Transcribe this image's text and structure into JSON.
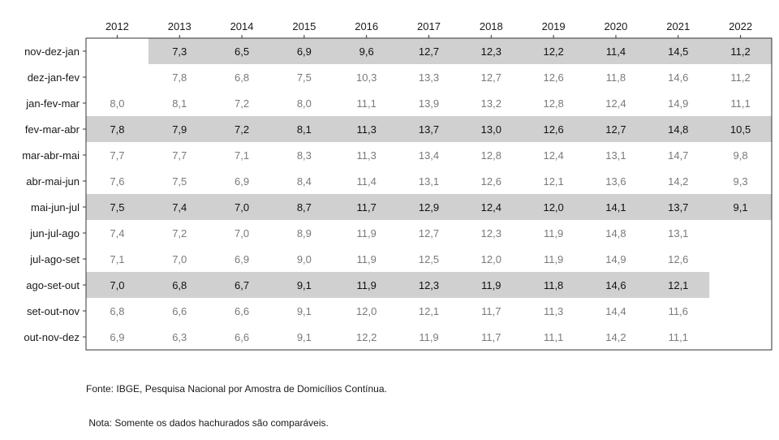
{
  "chart_data": {
    "type": "table",
    "title": "",
    "columns": [
      "2012",
      "2013",
      "2014",
      "2015",
      "2016",
      "2017",
      "2018",
      "2019",
      "2020",
      "2021",
      "2022"
    ],
    "rows": [
      {
        "label": "nov-dez-jan",
        "values": [
          null,
          "7,3",
          "6,5",
          "6,9",
          "9,6",
          "12,7",
          "12,3",
          "12,2",
          "11,4",
          "14,5",
          "11,2"
        ],
        "highlighted": [
          false,
          true,
          true,
          true,
          true,
          true,
          true,
          true,
          true,
          true,
          true
        ]
      },
      {
        "label": "dez-jan-fev",
        "values": [
          null,
          "7,8",
          "6,8",
          "7,5",
          "10,3",
          "13,3",
          "12,7",
          "12,6",
          "11,8",
          "14,6",
          "11,2"
        ],
        "highlighted": [
          false,
          false,
          false,
          false,
          false,
          false,
          false,
          false,
          false,
          false,
          false
        ]
      },
      {
        "label": "jan-fev-mar",
        "values": [
          "8,0",
          "8,1",
          "7,2",
          "8,0",
          "11,1",
          "13,9",
          "13,2",
          "12,8",
          "12,4",
          "14,9",
          "11,1"
        ],
        "highlighted": [
          false,
          false,
          false,
          false,
          false,
          false,
          false,
          false,
          false,
          false,
          false
        ]
      },
      {
        "label": "fev-mar-abr",
        "values": [
          "7,8",
          "7,9",
          "7,2",
          "8,1",
          "11,3",
          "13,7",
          "13,0",
          "12,6",
          "12,7",
          "14,8",
          "10,5"
        ],
        "highlighted": [
          true,
          true,
          true,
          true,
          true,
          true,
          true,
          true,
          true,
          true,
          true
        ]
      },
      {
        "label": "mar-abr-mai",
        "values": [
          "7,7",
          "7,7",
          "7,1",
          "8,3",
          "11,3",
          "13,4",
          "12,8",
          "12,4",
          "13,1",
          "14,7",
          "9,8"
        ],
        "highlighted": [
          false,
          false,
          false,
          false,
          false,
          false,
          false,
          false,
          false,
          false,
          false
        ]
      },
      {
        "label": "abr-mai-jun",
        "values": [
          "7,6",
          "7,5",
          "6,9",
          "8,4",
          "11,4",
          "13,1",
          "12,6",
          "12,1",
          "13,6",
          "14,2",
          "9,3"
        ],
        "highlighted": [
          false,
          false,
          false,
          false,
          false,
          false,
          false,
          false,
          false,
          false,
          false
        ]
      },
      {
        "label": "mai-jun-jul",
        "values": [
          "7,5",
          "7,4",
          "7,0",
          "8,7",
          "11,7",
          "12,9",
          "12,4",
          "12,0",
          "14,1",
          "13,7",
          "9,1"
        ],
        "highlighted": [
          true,
          true,
          true,
          true,
          true,
          true,
          true,
          true,
          true,
          true,
          true
        ]
      },
      {
        "label": "jun-jul-ago",
        "values": [
          "7,4",
          "7,2",
          "7,0",
          "8,9",
          "11,9",
          "12,7",
          "12,3",
          "11,9",
          "14,8",
          "13,1",
          null
        ],
        "highlighted": [
          false,
          false,
          false,
          false,
          false,
          false,
          false,
          false,
          false,
          false,
          false
        ]
      },
      {
        "label": "jul-ago-set",
        "values": [
          "7,1",
          "7,0",
          "6,9",
          "9,0",
          "11,9",
          "12,5",
          "12,0",
          "11,9",
          "14,9",
          "12,6",
          null
        ],
        "highlighted": [
          false,
          false,
          false,
          false,
          false,
          false,
          false,
          false,
          false,
          false,
          false
        ]
      },
      {
        "label": "ago-set-out",
        "values": [
          "7,0",
          "6,8",
          "6,7",
          "9,1",
          "11,9",
          "12,3",
          "11,9",
          "11,8",
          "14,6",
          "12,1",
          null
        ],
        "highlighted": [
          true,
          true,
          true,
          true,
          true,
          true,
          true,
          true,
          true,
          true,
          false
        ]
      },
      {
        "label": "set-out-nov",
        "values": [
          "6,8",
          "6,6",
          "6,6",
          "9,1",
          "12,0",
          "12,1",
          "11,7",
          "11,3",
          "14,4",
          "11,6",
          null
        ],
        "highlighted": [
          false,
          false,
          false,
          false,
          false,
          false,
          false,
          false,
          false,
          false,
          false
        ]
      },
      {
        "label": "out-nov-dez",
        "values": [
          "6,9",
          "6,3",
          "6,6",
          "9,1",
          "12,2",
          "11,9",
          "11,7",
          "11,1",
          "14,2",
          "11,1",
          null
        ],
        "highlighted": [
          false,
          false,
          false,
          false,
          false,
          false,
          false,
          false,
          false,
          false,
          false
        ]
      }
    ],
    "colors": {
      "highlight_fill": "#d0d0d0",
      "highlight_text": "#111111",
      "normal_text": "#7a7a7a",
      "axis_text": "#1a1a1a",
      "border": "#333333"
    }
  },
  "notes": {
    "source": "Fonte: IBGE, Pesquisa Nacional por Amostra de Domicílios Contínua.",
    "note": " Nota: Somente os dados hachurados são comparáveis."
  }
}
